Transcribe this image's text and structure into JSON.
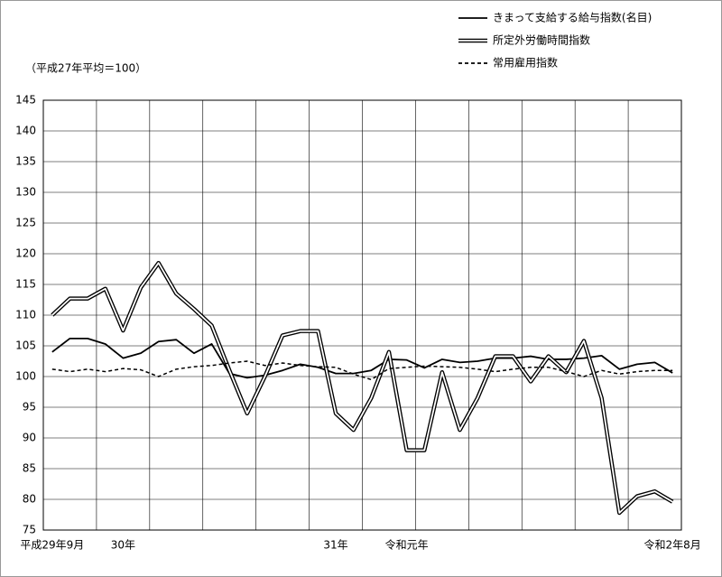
{
  "chart_data": {
    "type": "line",
    "annotation": "（平成27年平均＝100）",
    "categories": [
      "平成29年9月",
      null,
      null,
      null,
      "30年",
      null,
      null,
      null,
      null,
      null,
      null,
      null,
      null,
      null,
      null,
      null,
      "31年",
      null,
      null,
      null,
      "令和元年",
      null,
      null,
      null,
      null,
      null,
      null,
      null,
      null,
      null,
      null,
      null,
      null,
      null,
      null,
      "令和2年8月"
    ],
    "series": [
      {
        "name": "きまって支給する給与指数(名目)",
        "color": "#000000",
        "style": "solid",
        "values": [
          104,
          106.2,
          106.2,
          105.3,
          103,
          103.8,
          105.7,
          106,
          103.8,
          105.3,
          100.5,
          99.8,
          100.2,
          101,
          102,
          101.5,
          100.5,
          100.5,
          101,
          102.8,
          102.7,
          101.4,
          102.8,
          102.3,
          102.5,
          103,
          103,
          103.3,
          102.8,
          102.8,
          103,
          103.4,
          101.2,
          102,
          102.3,
          100.6
        ]
      },
      {
        "name": "所定外労働時間指数",
        "color": "#000000",
        "style": "double",
        "values": [
          110,
          112.7,
          112.7,
          114.3,
          107.5,
          114.5,
          118.5,
          113.5,
          111,
          108.3,
          101,
          94,
          100,
          106.7,
          107.4,
          107.4,
          94,
          91.3,
          96.5,
          104,
          88,
          88,
          100.7,
          91.3,
          96.5,
          103.3,
          103.3,
          99.2,
          103.3,
          100.7,
          105.8,
          96.5,
          77.8,
          80.5,
          81.3,
          79.6
        ]
      },
      {
        "name": "常用雇用指数",
        "color": "#000000",
        "style": "dashed",
        "values": [
          101.2,
          100.8,
          101.2,
          100.8,
          101.3,
          101.1,
          100,
          101.2,
          101.6,
          101.8,
          102.2,
          102.5,
          101.8,
          102.2,
          101.8,
          101.6,
          101.5,
          100.4,
          99.5,
          101.3,
          101.5,
          101.7,
          101.6,
          101.5,
          101.2,
          100.8,
          101.2,
          101.5,
          101.5,
          100.8,
          100,
          101,
          100.4,
          100.8,
          101,
          101
        ]
      }
    ],
    "ylim": [
      75,
      145
    ],
    "yticks": [
      75,
      80,
      85,
      90,
      95,
      100,
      105,
      110,
      115,
      120,
      125,
      130,
      135,
      140,
      145
    ],
    "grid": true
  }
}
